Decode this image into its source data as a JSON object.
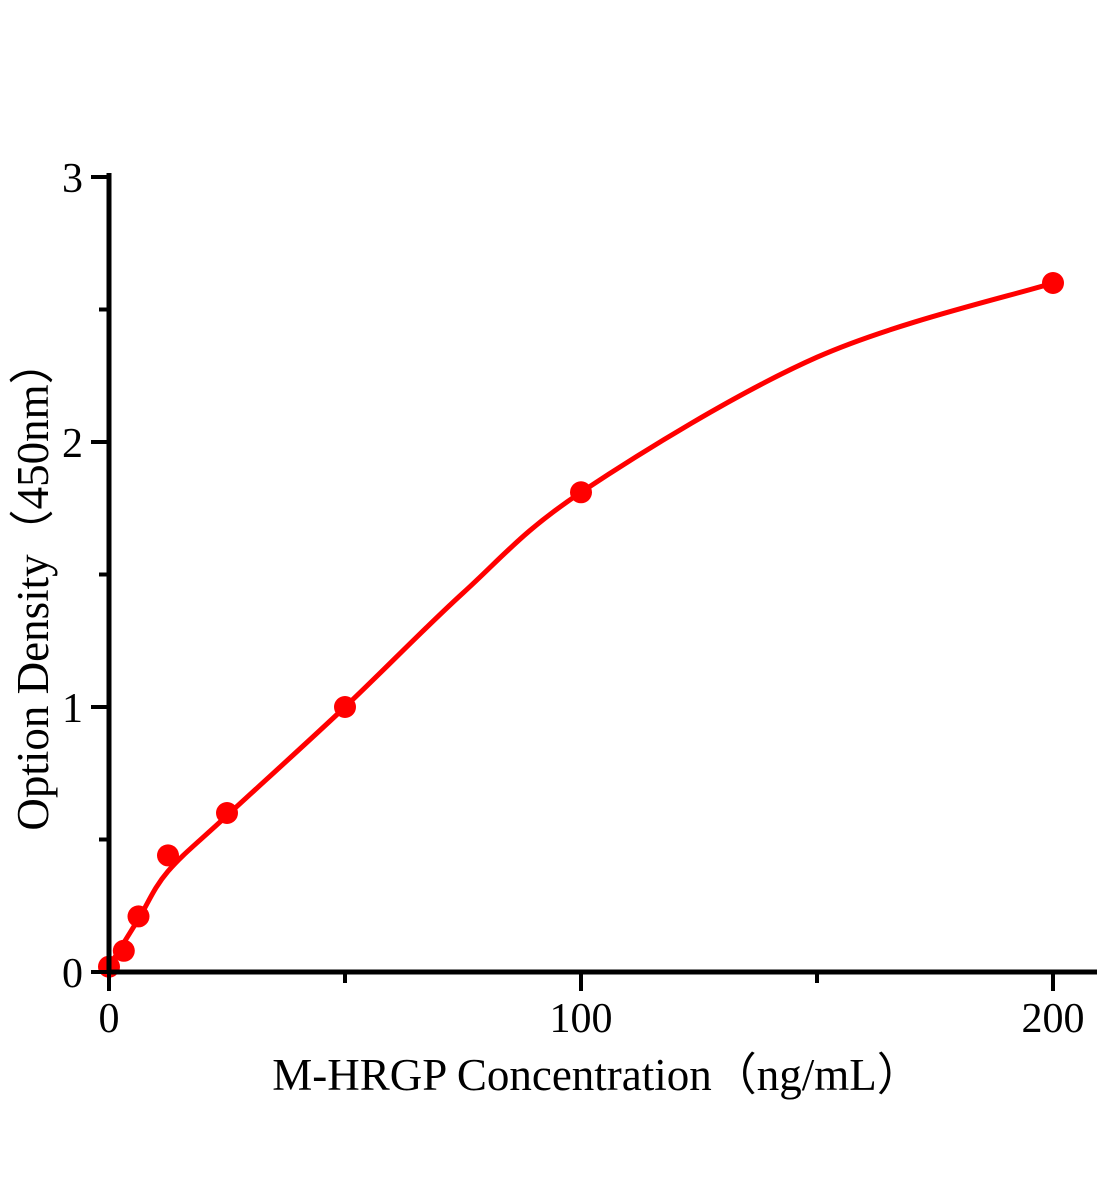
{
  "chart_data": {
    "type": "scatter",
    "subtype": "scatter-with-fitted-curve",
    "title": "",
    "xlabel": "M-HRGP Concentration（ng/mL）",
    "ylabel": "Option Density（450nm）",
    "x_tick_labels": [
      "0",
      "100",
      "200"
    ],
    "x_ticks_major": [
      0,
      100,
      200
    ],
    "x_ticks_minor": [
      50,
      150
    ],
    "y_tick_labels": [
      "0",
      "1",
      "2",
      "3"
    ],
    "y_ticks_major": [
      0,
      1,
      2,
      3
    ],
    "y_ticks_minor": [
      0.5,
      1.5,
      2.5
    ],
    "xlim": [
      0,
      209
    ],
    "ylim": [
      0,
      3
    ],
    "grid": false,
    "legend": "none",
    "points": [
      [
        0,
        0.02
      ],
      [
        3.125,
        0.08
      ],
      [
        6.25,
        0.21
      ],
      [
        12.5,
        0.44
      ],
      [
        25,
        0.6
      ],
      [
        50,
        1.0
      ],
      [
        100,
        1.81
      ],
      [
        200,
        2.6
      ]
    ],
    "curve_points": [
      [
        0,
        0.02
      ],
      [
        6.25,
        0.2
      ],
      [
        12.5,
        0.38
      ],
      [
        25,
        0.59
      ],
      [
        50,
        1.0
      ],
      [
        75,
        1.43
      ],
      [
        100,
        1.81
      ],
      [
        150,
        2.32
      ],
      [
        200,
        2.6
      ]
    ],
    "colors": {
      "series": "#ff0000",
      "axis": "#000000",
      "background": "#ffffff"
    }
  }
}
